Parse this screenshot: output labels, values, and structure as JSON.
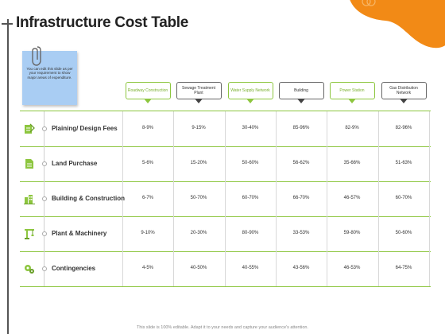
{
  "title": "Infrastructure Cost Table",
  "note": {
    "text": "You can edit this slide as per your requirement to show major areas of expenditure."
  },
  "columns": [
    {
      "label": "Roadway Construction",
      "style": "green"
    },
    {
      "label": "Sewage Treatment Plant",
      "style": "dark"
    },
    {
      "label": "Water Supply Network",
      "style": "green"
    },
    {
      "label": "Building",
      "style": "dark"
    },
    {
      "label": "Power Station",
      "style": "green"
    },
    {
      "label": "Gas Distribution Network",
      "style": "dark"
    }
  ],
  "rows": [
    {
      "label": "Plaining/ Design Fees",
      "icon": "design-document-icon",
      "values": [
        "8-9%",
        "9-15%",
        "30-40%",
        "85-96%",
        "82-9%",
        "82-96%"
      ]
    },
    {
      "label": "Land Purchase",
      "icon": "land-document-icon",
      "values": [
        "5-6%",
        "15-20%",
        "50-60%",
        "56-62%",
        "35-66%",
        "51-63%"
      ]
    },
    {
      "label": "Building & Construction",
      "icon": "building-crane-icon",
      "values": [
        "6-7%",
        "50-70%",
        "60-70%",
        "66-70%",
        "46-57%",
        "60-70%"
      ]
    },
    {
      "label": "Plant & Machinery",
      "icon": "machinery-crane-icon",
      "values": [
        "9-10%",
        "20-30%",
        "80-90%",
        "33-53%",
        "59-80%",
        "50-60%"
      ]
    },
    {
      "label": "Contingencies",
      "icon": "contingency-gears-icon",
      "values": [
        "4-5%",
        "40-50%",
        "40-55%",
        "43-56%",
        "46-53%",
        "64-75%"
      ]
    }
  ],
  "footer": "This slide is 100% editable. Adapt it to your needs and capture your audience's attention.",
  "colors": {
    "accent_green": "#8dc63f",
    "accent_orange": "#f28a16",
    "note_blue": "#a9cdf3"
  }
}
